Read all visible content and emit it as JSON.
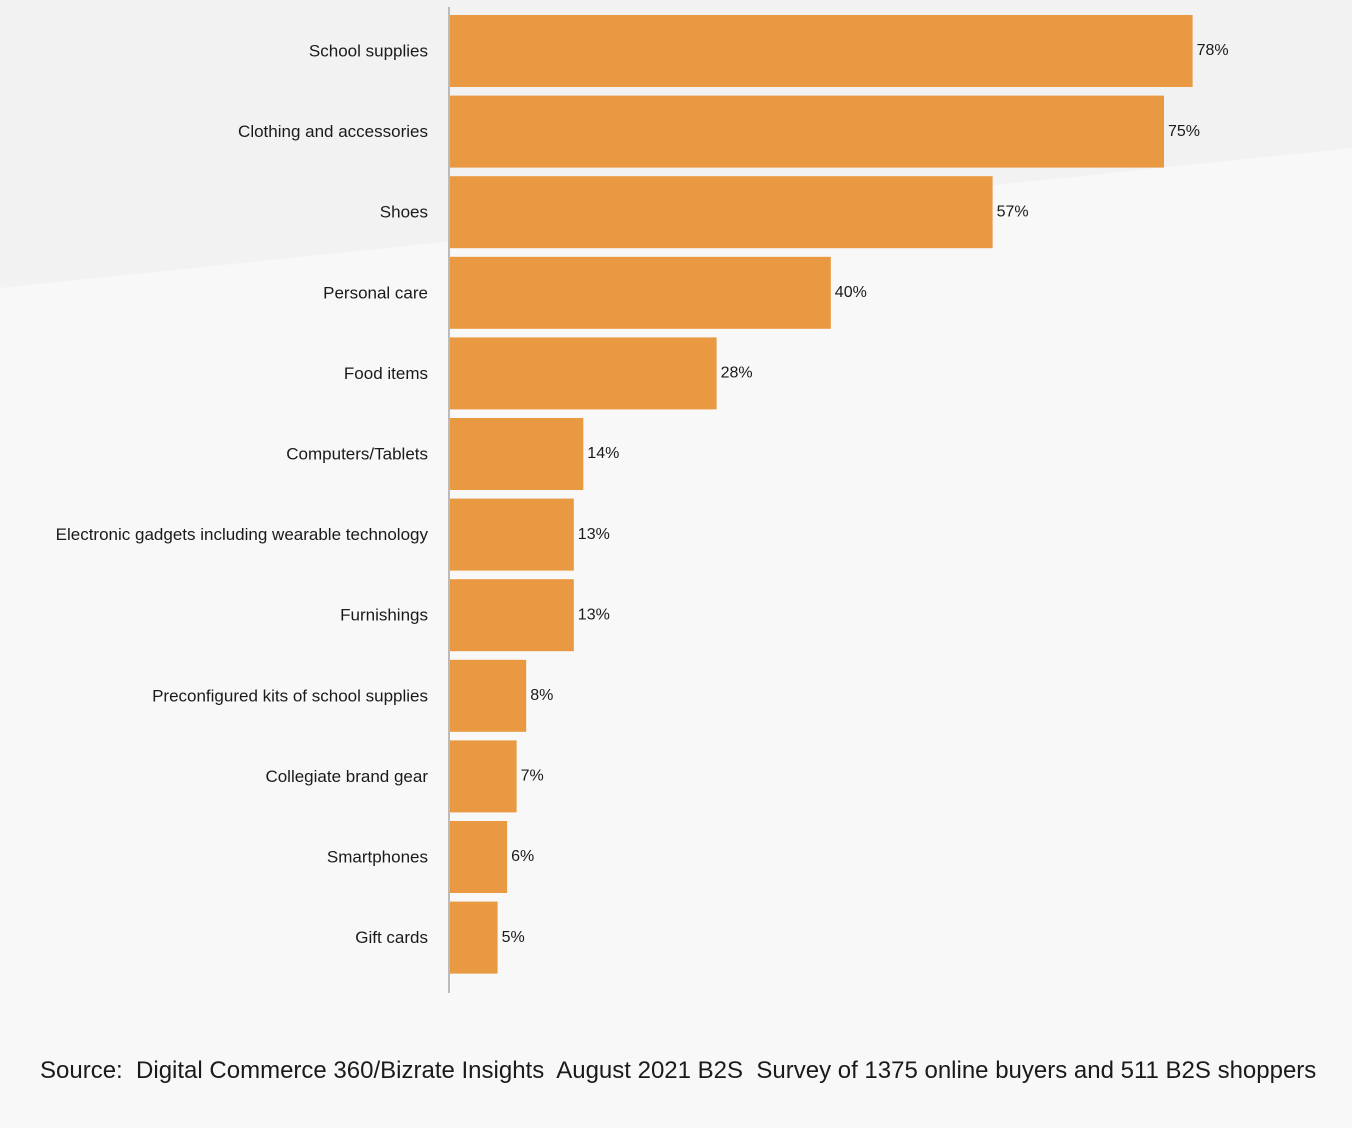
{
  "chart_data": {
    "type": "bar",
    "orientation": "horizontal",
    "categories": [
      "School supplies",
      "Clothing and accessories",
      "Shoes",
      "Personal care",
      "Food items",
      "Computers/Tablets",
      "Electronic gadgets including wearable technology",
      "Furnishings",
      "Preconfigured kits of school supplies",
      "Collegiate brand gear",
      "Smartphones",
      "Gift cards"
    ],
    "values": [
      78,
      75,
      57,
      40,
      28,
      14,
      13,
      13,
      8,
      7,
      6,
      5
    ],
    "value_labels": [
      "78%",
      "75%",
      "57%",
      "40%",
      "28%",
      "14%",
      "13%",
      "13%",
      "8%",
      "7%",
      "6%",
      "5%"
    ],
    "unit": "%",
    "xlim": [
      0,
      100
    ],
    "grid": false,
    "legend": "none",
    "bar_color": "#e99941"
  },
  "source": "Source:  Digital Commerce 360/Bizrate Insights  August 2021 B2S  Survey of 1375 online buyers and 511 B2S shoppers",
  "colors": {
    "bar": "#e99941",
    "background": "#f8f8f8",
    "background_band": "#f2f2f2",
    "axis": "#bbbbbb",
    "text": "#1a1a1a"
  }
}
